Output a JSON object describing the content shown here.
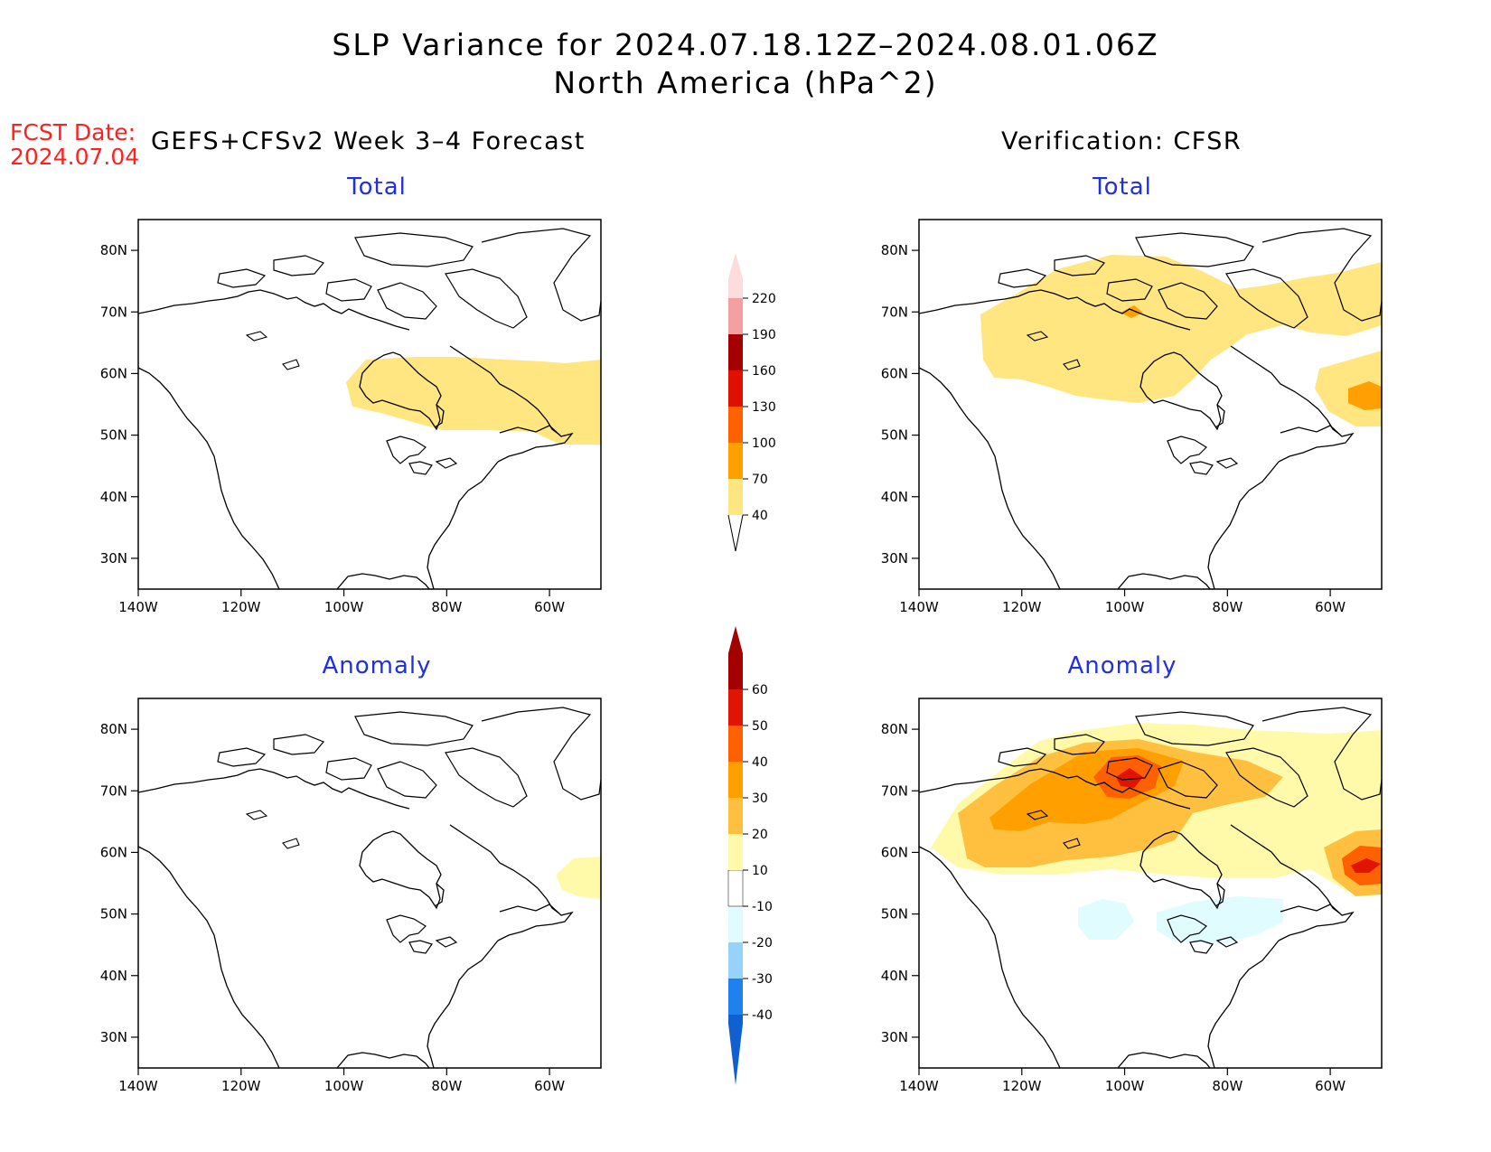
{
  "title": {
    "line1": "SLP Variance for 2024.07.18.12Z–2024.08.01.06Z",
    "line2": "North America (hPa^2)"
  },
  "forecast": {
    "date_label": "FCST Date:",
    "date_value": "2024.07.04",
    "header": "GEFS+CFSv2 Week 3–4 Forecast"
  },
  "verification": {
    "header": "Verification: CFSR"
  },
  "panels": {
    "fc_total": {
      "title": "Total"
    },
    "fc_anomaly": {
      "title": "Anomaly"
    },
    "vf_total": {
      "title": "Total"
    },
    "vf_anomaly": {
      "title": "Anomaly"
    }
  },
  "axes": {
    "lat_labels": [
      "80N",
      "70N",
      "60N",
      "50N",
      "40N",
      "30N"
    ],
    "lon_labels": [
      "140W",
      "120W",
      "100W",
      "80W",
      "60W"
    ]
  },
  "colorbars": {
    "total": {
      "levels": [
        "40",
        "70",
        "100",
        "130",
        "160",
        "190",
        "220"
      ],
      "colors": [
        "#ffe680",
        "#ffa000",
        "#ff6000",
        "#e01000",
        "#a50000",
        "#f4a0a0",
        "#fcdcdc"
      ]
    },
    "anomaly": {
      "levels": [
        "-40",
        "-30",
        "-20",
        "-10",
        "10",
        "20",
        "30",
        "40",
        "50",
        "60"
      ],
      "colors": [
        "#1060d0",
        "#2080f0",
        "#96d2fa",
        "#e0fcff",
        "#ffffff",
        "#fffaaa",
        "#ffc040",
        "#ffa000",
        "#ff6000",
        "#e01400",
        "#a50000"
      ]
    }
  },
  "map_data": {
    "region": "North America",
    "lon_range": [
      -140,
      -50
    ],
    "lat_range": [
      25,
      85
    ],
    "fc_total_shading": [
      {
        "level": "40-70",
        "color": "#ffe680",
        "area": "Hudson Bay to Labrador band, ~50N-62N, 95W-50W"
      }
    ],
    "fc_anomaly_shading": [
      {
        "level": "10-20",
        "color": "#fffaaa",
        "area": "Labrador coast near 58N, 55W-50W"
      }
    ],
    "vf_total_shading": [
      {
        "level": "40-70",
        "color": "#ffe680",
        "area": "northern Canada and Arctic archipelago, 52N-80N"
      },
      {
        "level": "70-100",
        "color": "#ffa000",
        "area": "near 70N 100W and Labrador Sea near 56N 52W"
      }
    ],
    "vf_anomaly_shading": [
      {
        "level": "10-30",
        "color": "#ffc040",
        "area": "northern Canada 55N-80N"
      },
      {
        "level": "30-50",
        "color": "#ff6000",
        "area": "Canadian Arctic near 70N 100W and Labrador Sea"
      },
      {
        "level": "-20 to -10",
        "color": "#e0fcff",
        "area": "northern US / southern Canada near 48N-52N"
      }
    ]
  }
}
